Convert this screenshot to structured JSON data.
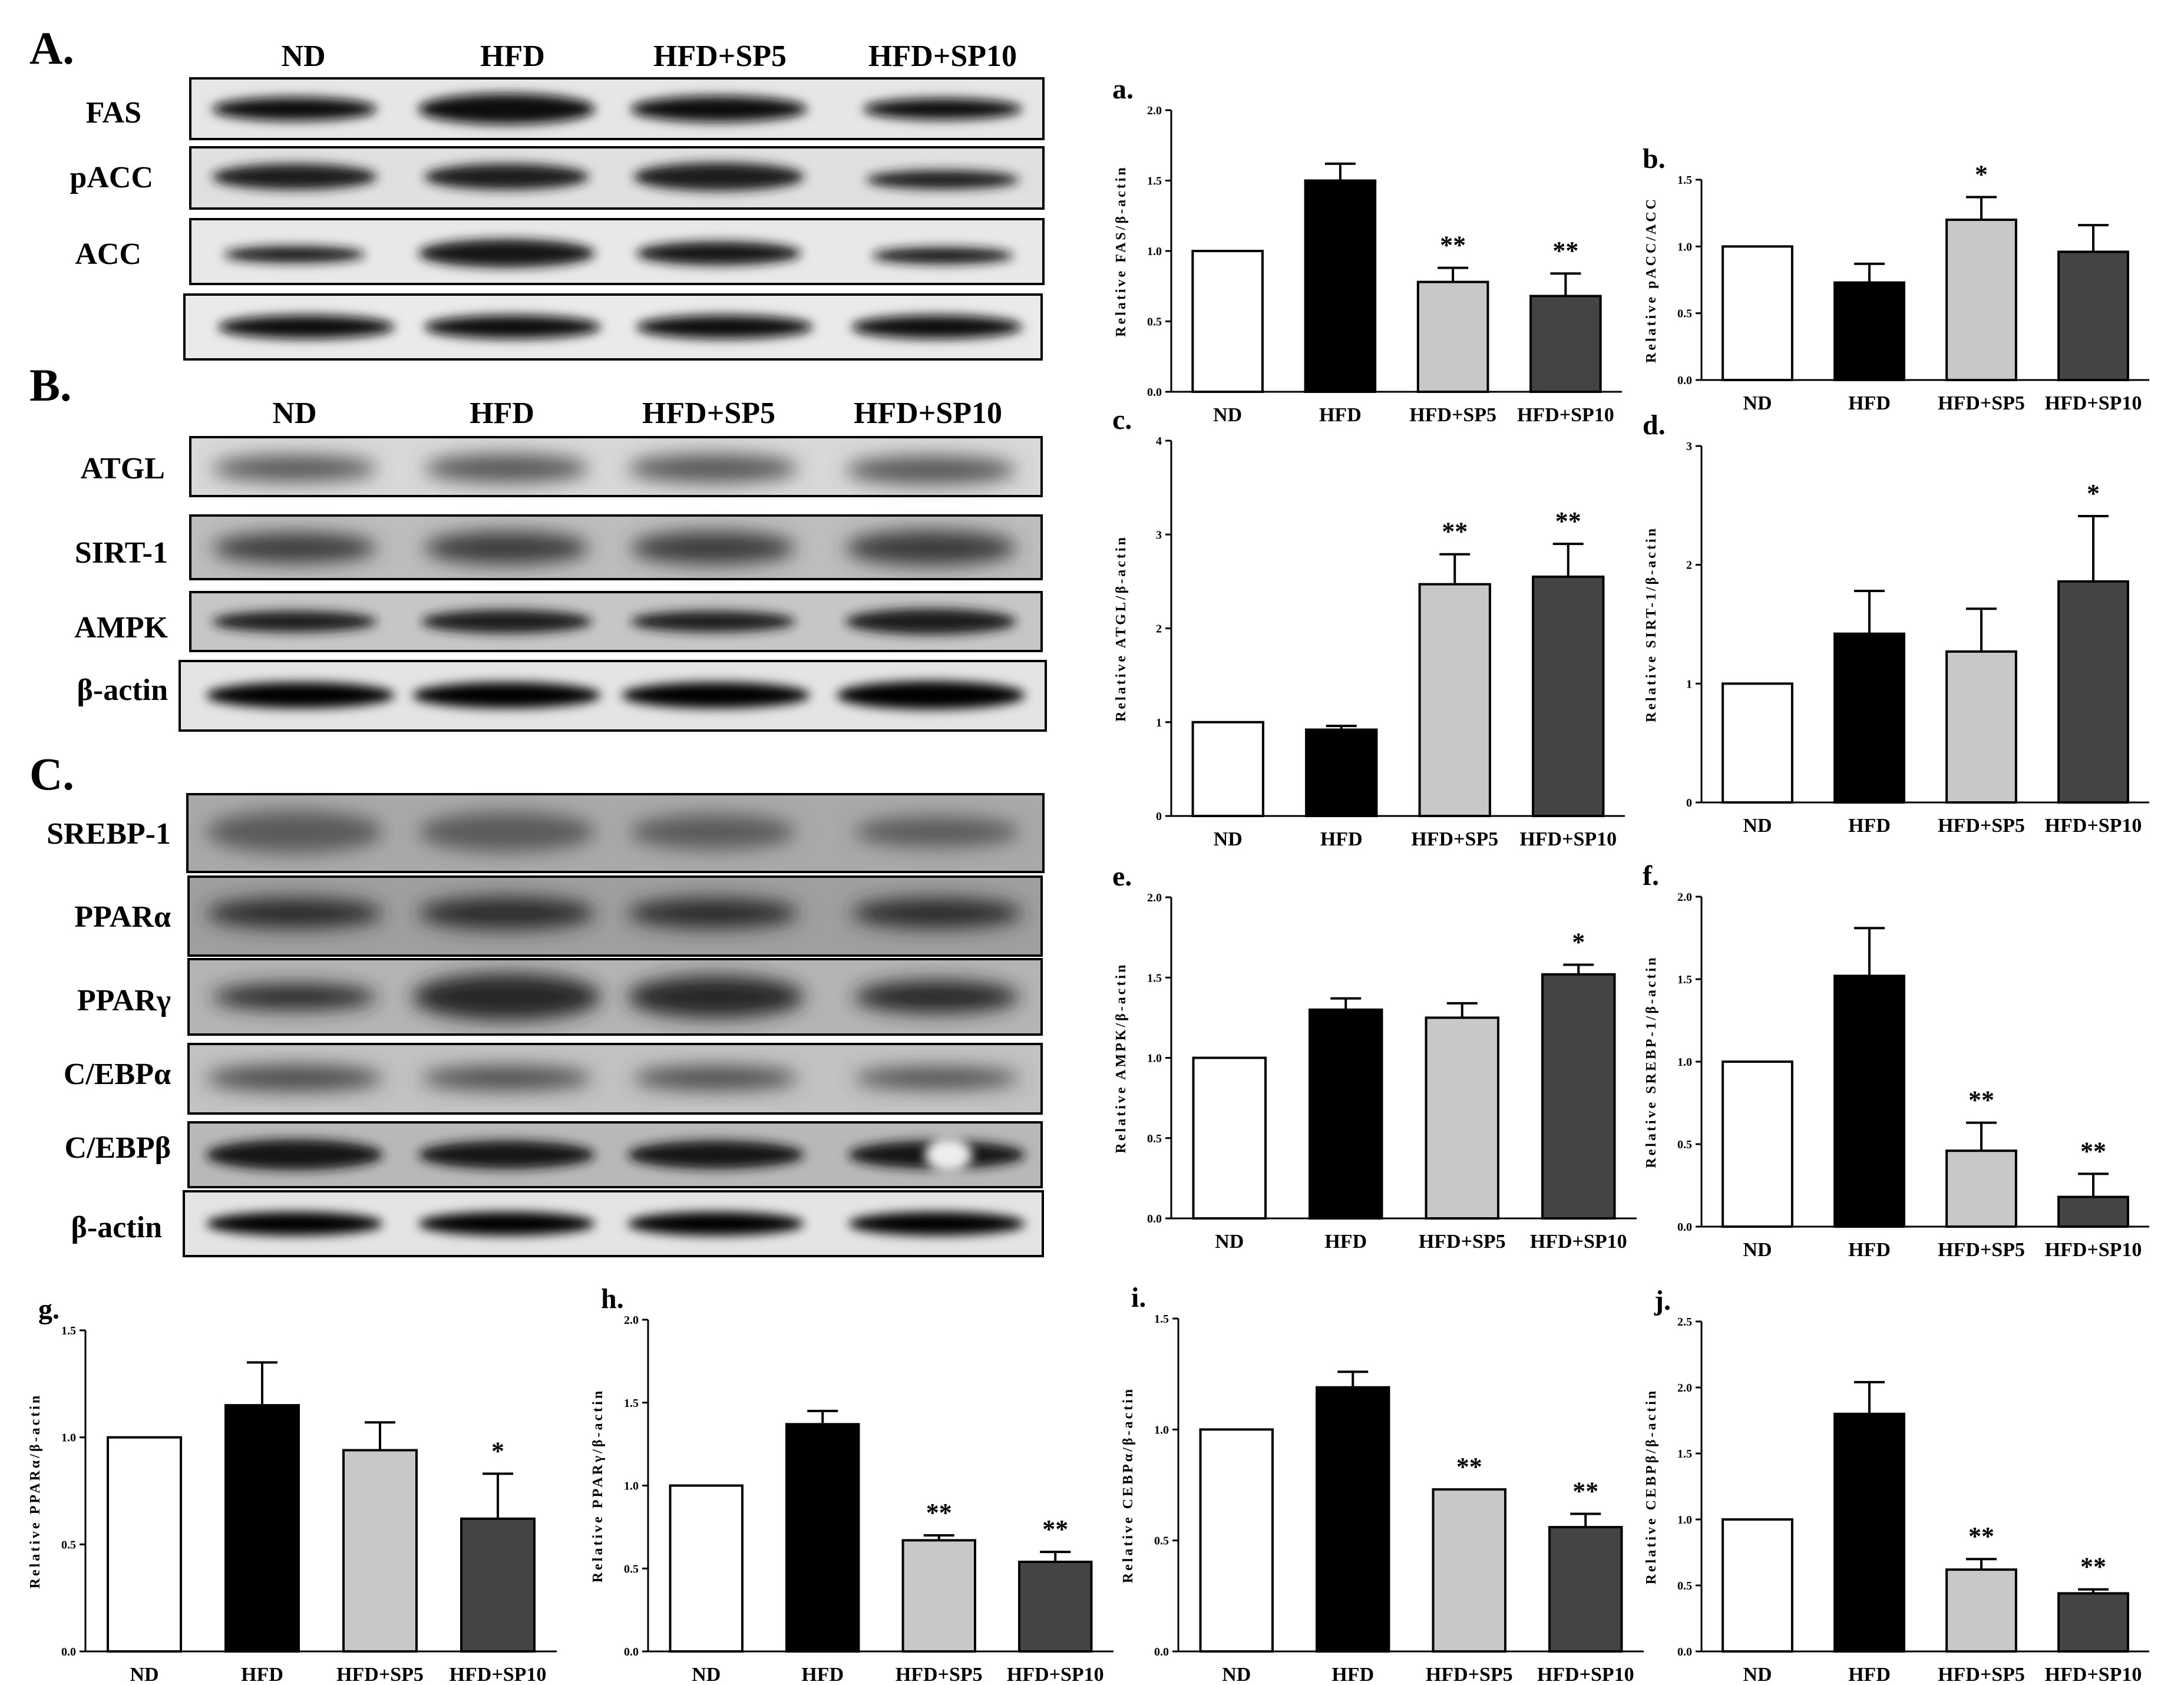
{
  "blots": {
    "A": {
      "label": "A.",
      "groups": [
        "ND",
        "HFD",
        "HFD+SP5",
        "HFD+SP10"
      ],
      "proteins": [
        "FAS",
        "pACC",
        "ACC",
        ""
      ]
    },
    "B": {
      "label": "B.",
      "groups": [
        "ND",
        "HFD",
        "HFD+SP5",
        "HFD+SP10"
      ],
      "proteins": [
        "ATGL",
        "SIRT-1",
        "AMPK",
        "β-actin"
      ]
    },
    "C": {
      "label": "C.",
      "groups": [],
      "proteins": [
        "SREBP-1",
        "PPARα",
        "PPARγ",
        "C/EBPα",
        "C/EBPβ",
        "β-actin"
      ]
    }
  },
  "colors": {
    "ND": "#ffffff",
    "HFD": "#000000",
    "HFD+SP5": "#c8c8c8",
    "HFD+SP10": "#444444"
  },
  "chart_data": [
    {
      "id": "a",
      "label": "a.",
      "type": "bar",
      "categories": [
        "ND",
        "HFD",
        "HFD+SP5",
        "HFD+SP10"
      ],
      "values": [
        1.0,
        1.5,
        0.78,
        0.68
      ],
      "errors": [
        0,
        0.12,
        0.1,
        0.16
      ],
      "significance": [
        "",
        "",
        "**",
        "**"
      ],
      "ylabel": "Relative FAS/β-actin",
      "ylim": [
        0,
        2.0
      ],
      "yticks": [
        "0.0",
        "0.5",
        "1.0",
        "1.5",
        "2.0"
      ]
    },
    {
      "id": "b",
      "label": "b.",
      "type": "bar",
      "categories": [
        "ND",
        "HFD",
        "HFD+SP5",
        "HFD+SP10"
      ],
      "values": [
        1.0,
        0.73,
        1.2,
        0.96
      ],
      "errors": [
        0,
        0.14,
        0.17,
        0.2
      ],
      "significance": [
        "",
        "",
        "*",
        ""
      ],
      "ylabel": "Relative pACC/ACC",
      "ylim": [
        0,
        1.5
      ],
      "yticks": [
        "0.0",
        "0.5",
        "1.0",
        "1.5"
      ]
    },
    {
      "id": "c",
      "label": "c.",
      "type": "bar",
      "categories": [
        "ND",
        "HFD",
        "HFD+SP5",
        "HFD+SP10"
      ],
      "values": [
        1.0,
        0.92,
        2.47,
        2.55
      ],
      "errors": [
        0,
        0.04,
        0.32,
        0.35
      ],
      "significance": [
        "",
        "",
        "**",
        "**"
      ],
      "ylabel": "Relative ATGL/β-actin",
      "ylim": [
        0,
        4
      ],
      "yticks": [
        "0",
        "1",
        "2",
        "3",
        "4"
      ]
    },
    {
      "id": "d",
      "label": "d.",
      "type": "bar",
      "categories": [
        "ND",
        "HFD",
        "HFD+SP5",
        "HFD+SP10"
      ],
      "values": [
        1.0,
        1.42,
        1.27,
        1.86
      ],
      "errors": [
        0,
        0.36,
        0.36,
        0.55
      ],
      "significance": [
        "",
        "",
        "",
        "*"
      ],
      "ylabel": "Relative SIRT-1/β-actin",
      "ylim": [
        0,
        3
      ],
      "yticks": [
        "0",
        "1",
        "2",
        "3"
      ]
    },
    {
      "id": "e",
      "label": "e.",
      "type": "bar",
      "categories": [
        "ND",
        "HFD",
        "HFD+SP5",
        "HFD+SP10"
      ],
      "values": [
        1.0,
        1.3,
        1.25,
        1.52
      ],
      "errors": [
        0,
        0.07,
        0.09,
        0.06
      ],
      "significance": [
        "",
        "",
        "",
        "*"
      ],
      "ylabel": "Relative AMPK/β-actin",
      "ylim": [
        0,
        2.0
      ],
      "yticks": [
        "0.0",
        "0.5",
        "1.0",
        "1.5",
        "2.0"
      ]
    },
    {
      "id": "f",
      "label": "f.",
      "type": "bar",
      "categories": [
        "ND",
        "HFD",
        "HFD+SP5",
        "HFD+SP10"
      ],
      "values": [
        1.0,
        1.52,
        0.46,
        0.18
      ],
      "errors": [
        0,
        0.29,
        0.17,
        0.14
      ],
      "significance": [
        "",
        "",
        "**",
        "**"
      ],
      "ylabel": "Relative SREBP-1/β-actin",
      "ylim": [
        0,
        2.0
      ],
      "yticks": [
        "0.0",
        "0.5",
        "1.0",
        "1.5",
        "2.0"
      ]
    },
    {
      "id": "g",
      "label": "g.",
      "type": "bar",
      "categories": [
        "ND",
        "HFD",
        "HFD+SP5",
        "HFD+SP10"
      ],
      "values": [
        1.0,
        1.15,
        0.94,
        0.62
      ],
      "errors": [
        0,
        0.2,
        0.13,
        0.21
      ],
      "significance": [
        "",
        "",
        "",
        "*"
      ],
      "ylabel": "Relative PPARα/β-actin",
      "ylim": [
        0,
        1.5
      ],
      "yticks": [
        "0.0",
        "0.5",
        "1.0",
        "1.5"
      ]
    },
    {
      "id": "h",
      "label": "h.",
      "type": "bar",
      "categories": [
        "ND",
        "HFD",
        "HFD+SP5",
        "HFD+SP10"
      ],
      "values": [
        1.0,
        1.37,
        0.67,
        0.54
      ],
      "errors": [
        0,
        0.08,
        0.03,
        0.06
      ],
      "significance": [
        "",
        "",
        "**",
        "**"
      ],
      "ylabel": "Relative PPARγ/β-actin",
      "ylim": [
        0,
        2.0
      ],
      "yticks": [
        "0.0",
        "0.5",
        "1.0",
        "1.5",
        "2.0"
      ]
    },
    {
      "id": "i",
      "label": "i.",
      "type": "bar",
      "categories": [
        "ND",
        "HFD",
        "HFD+SP5",
        "HFD+SP10"
      ],
      "values": [
        1.0,
        1.19,
        0.73,
        0.56
      ],
      "errors": [
        0,
        0.07,
        0,
        0.06
      ],
      "significance": [
        "",
        "",
        "**",
        "**"
      ],
      "ylabel": "Relative CEBPα/β-actin",
      "ylim": [
        0,
        1.5
      ],
      "yticks": [
        "0.0",
        "0.5",
        "1.0",
        "1.5"
      ]
    },
    {
      "id": "j",
      "label": "j.",
      "type": "bar",
      "categories": [
        "ND",
        "HFD",
        "HFD+SP5",
        "HFD+SP10"
      ],
      "values": [
        1.0,
        1.8,
        0.62,
        0.44
      ],
      "errors": [
        0,
        0.24,
        0.08,
        0.03
      ],
      "significance": [
        "",
        "",
        "**",
        "**"
      ],
      "ylabel": "Relative CEBPβ/β-actin",
      "ylim": [
        0,
        2.5
      ],
      "yticks": [
        "0.0",
        "0.5",
        "1.0",
        "1.5",
        "2.0",
        "2.5"
      ]
    }
  ]
}
